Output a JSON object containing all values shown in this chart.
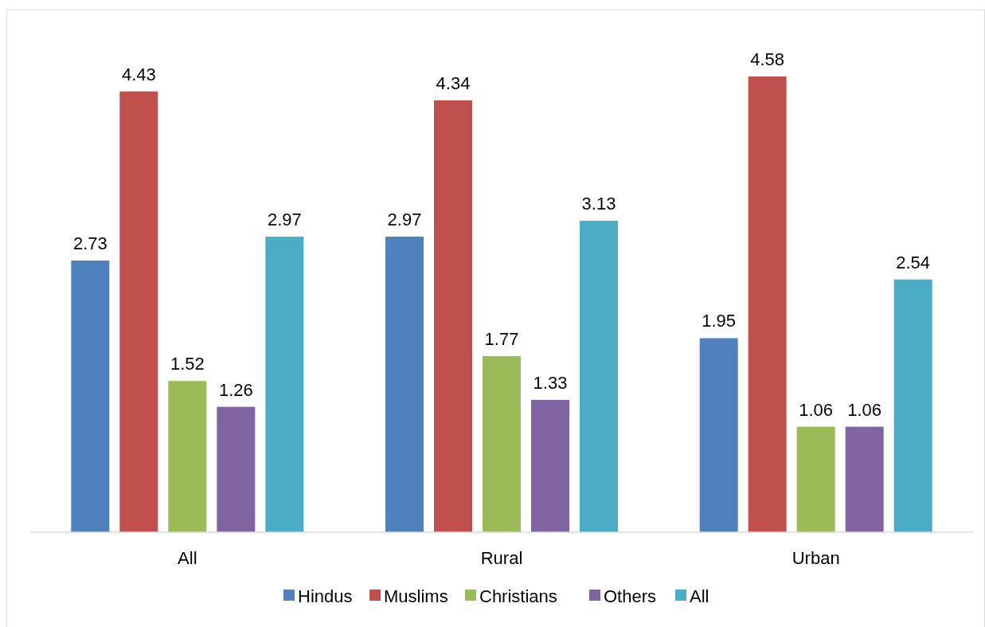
{
  "chart_data": {
    "type": "bar",
    "categories": [
      "All",
      "Rural",
      "Urban"
    ],
    "series": [
      {
        "name": "Hindus",
        "color": "#4f81bd",
        "values": [
          2.73,
          2.97,
          1.95
        ]
      },
      {
        "name": "Muslims",
        "color": "#c0504d",
        "values": [
          4.43,
          4.34,
          4.58
        ]
      },
      {
        "name": "Christians",
        "color": "#9bbb59",
        "values": [
          1.52,
          1.77,
          1.06
        ]
      },
      {
        "name": "Others",
        "color": "#8064a2",
        "values": [
          1.26,
          1.33,
          1.06
        ]
      },
      {
        "name": "All",
        "color": "#4bacc6",
        "values": [
          2.97,
          3.13,
          2.54
        ]
      }
    ],
    "data_labels": true,
    "legend": "bottom"
  }
}
